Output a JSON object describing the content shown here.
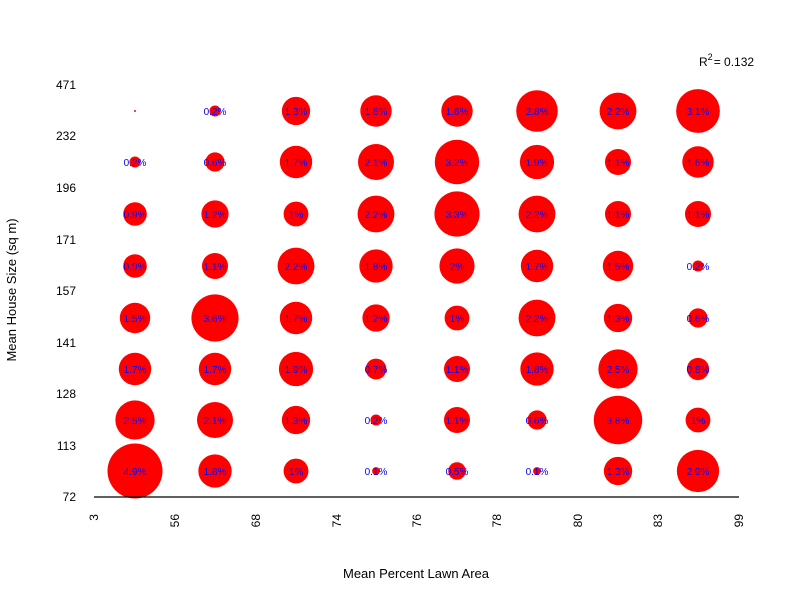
{
  "chart_data": {
    "type": "scatter",
    "subtype": "bubble-grid",
    "xlabel": "Mean Percent Lawn Area",
    "ylabel": "Mean House Size (sq m)",
    "annotation": {
      "prefix": "R",
      "superscript": "2",
      "suffix": "= 0.132"
    },
    "x_ticks": [
      "3",
      "56",
      "68",
      "74",
      "76",
      "78",
      "80",
      "83",
      "99"
    ],
    "y_ticks": [
      "72",
      "113",
      "128",
      "141",
      "157",
      "171",
      "196",
      "232",
      "471"
    ],
    "colors": {
      "bubble": "#ff0000",
      "label": "#0000ff",
      "axis": "#000000"
    },
    "grid": false,
    "cells": [
      [
        4.9,
        1.8,
        1.0,
        0.1,
        0.5,
        0.1,
        1.3,
        2.9
      ],
      [
        2.5,
        2.1,
        1.3,
        0.2,
        1.1,
        0.6,
        3.8,
        1.0
      ],
      [
        1.7,
        1.7,
        1.9,
        0.7,
        1.1,
        1.8,
        2.5,
        0.8
      ],
      [
        1.5,
        3.6,
        1.7,
        1.2,
        1.0,
        2.2,
        1.3,
        0.6
      ],
      [
        0.9,
        1.1,
        2.2,
        1.8,
        2.0,
        1.7,
        1.5,
        0.2
      ],
      [
        0.9,
        1.2,
        1.0,
        2.2,
        3.3,
        2.2,
        1.1,
        1.1
      ],
      [
        0.2,
        0.6,
        1.7,
        2.1,
        3.2,
        1.9,
        1.1,
        1.6
      ],
      [
        0.0,
        0.2,
        1.3,
        1.6,
        1.6,
        2.8,
        2.2,
        3.1
      ]
    ],
    "labels": [
      [
        "4.9%",
        "1.8%",
        "1%",
        "0.1%",
        "0.5%",
        "0.1%",
        "1.3%",
        "2.9%"
      ],
      [
        "2.5%",
        "2.1%",
        "1.3%",
        "0.2%",
        "1.1%",
        "0.6%",
        "3.8%",
        "1%"
      ],
      [
        "1.7%",
        "1.7%",
        "1.9%",
        "0.7%",
        "1.1%",
        "1.8%",
        "2.5%",
        "0.8%"
      ],
      [
        "1.5%",
        "3.6%",
        "1.7%",
        "1.2%",
        "1%",
        "2.2%",
        "1.3%",
        "0.6%"
      ],
      [
        "0.9%",
        "1.1%",
        "2.2%",
        "1.8%",
        "2%",
        "1.7%",
        "1.5%",
        "0.2%"
      ],
      [
        "0.9%",
        "1.2%",
        "1%",
        "2.2%",
        "3.3%",
        "2.2%",
        "1.1%",
        "1.1%"
      ],
      [
        "0.2%",
        "0.6%",
        "1.7%",
        "2.1%",
        "3.2%",
        "1.9%",
        "1.1%",
        "1.6%"
      ],
      [
        "",
        "0.2%",
        "1.3%",
        "1.6%",
        "1.6%",
        "2.8%",
        "2.2%",
        "3.1%"
      ]
    ]
  }
}
